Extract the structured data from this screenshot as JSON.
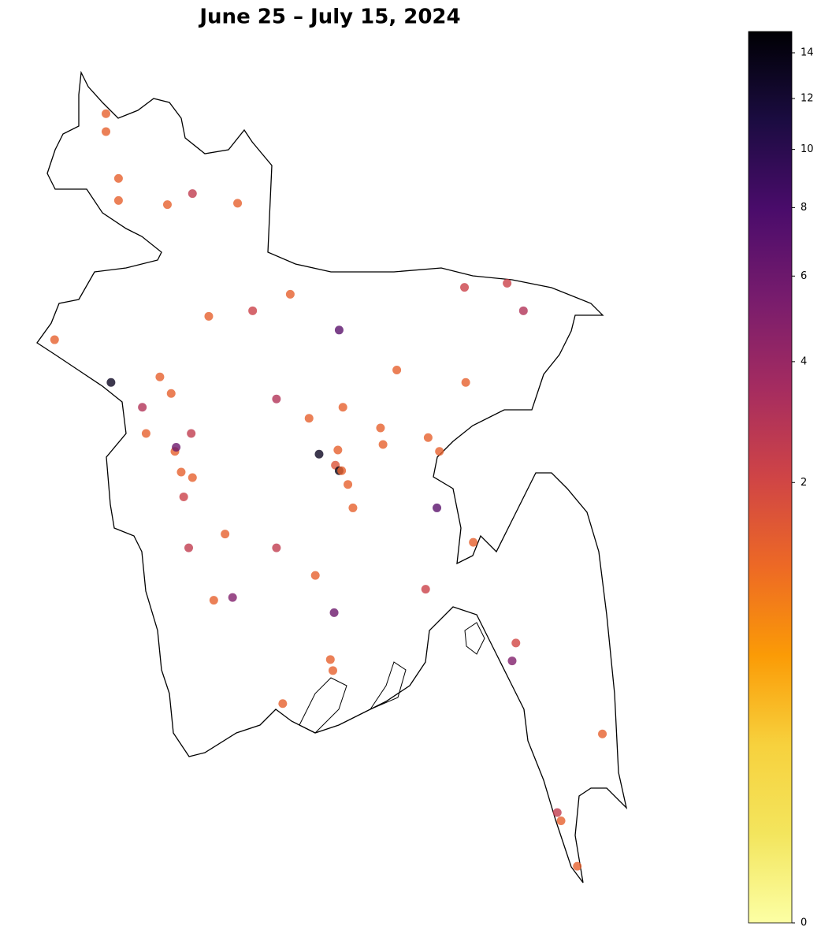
{
  "chart_data": {
    "type": "scatter",
    "title": "June 25 – July 15, 2024",
    "x": [
      88.55,
      88.55,
      88.65,
      88.65,
      89.04,
      89.24,
      89.6,
      90.02,
      89.72,
      89.37,
      90.41,
      91.41,
      91.75,
      91.88,
      88.14,
      88.59,
      88.98,
      89.07,
      88.84,
      89.91,
      90.17,
      90.44,
      90.87,
      91.42,
      88.87,
      89.23,
      89.1,
      89.11,
      90.74,
      90.76,
      91.12,
      91.21,
      90.25,
      90.4,
      90.38,
      90.41,
      90.43,
      90.48,
      90.52,
      89.15,
      89.24,
      89.17,
      91.19,
      89.5,
      89.21,
      89.91,
      91.48,
      90.22,
      91.1,
      89.41,
      89.56,
      90.37,
      91.82,
      91.79,
      90.34,
      90.36,
      89.96,
      92.51,
      92.15,
      92.18,
      92.31
    ],
    "y": [
      26.32,
      26.19,
      25.85,
      25.69,
      25.66,
      25.74,
      25.67,
      25.01,
      24.89,
      24.85,
      24.75,
      25.06,
      25.09,
      24.89,
      24.68,
      24.37,
      24.41,
      24.29,
      24.19,
      24.25,
      24.11,
      24.19,
      24.46,
      24.37,
      24.0,
      24.0,
      23.87,
      23.9,
      24.04,
      23.92,
      23.97,
      23.87,
      23.85,
      23.88,
      23.77,
      23.73,
      23.73,
      23.63,
      23.46,
      23.72,
      23.68,
      23.54,
      23.46,
      23.27,
      23.17,
      23.17,
      23.21,
      22.97,
      22.87,
      22.79,
      22.81,
      22.7,
      22.48,
      22.35,
      22.36,
      22.28,
      22.04,
      21.82,
      21.25,
      21.19,
      20.86
    ],
    "values": [
      1.3,
      1.3,
      1.3,
      1.3,
      1.3,
      2.5,
      1.3,
      1.3,
      2.2,
      1.3,
      7,
      2.2,
      2.2,
      3,
      1.3,
      13,
      1.3,
      1.3,
      3,
      3,
      1.3,
      1.3,
      1.3,
      1.3,
      1.3,
      2.5,
      1.3,
      6,
      1.3,
      1.3,
      1.3,
      1.3,
      13,
      1.3,
      1.6,
      14,
      1.3,
      1.3,
      1.3,
      1.3,
      1.3,
      2.2,
      7,
      1.3,
      2.5,
      2.5,
      1.3,
      1.3,
      2.2,
      1.3,
      5,
      6,
      2,
      5,
      1.3,
      1.3,
      1.3,
      1.3,
      2.5,
      1.3,
      1.3
    ],
    "colorbar": {
      "lim": [
        0,
        15
      ],
      "ticks": [
        0,
        2,
        4,
        6,
        8,
        10,
        12,
        14
      ],
      "gamma": 0.35,
      "colors": [
        "#fcffa4",
        "#f3e55d",
        "#f7d13d",
        "#fb9b06",
        "#ed6925",
        "#cf4446",
        "#a52c60",
        "#781c6d",
        "#4a0c6b",
        "#1b0c41",
        "#000004"
      ]
    }
  }
}
